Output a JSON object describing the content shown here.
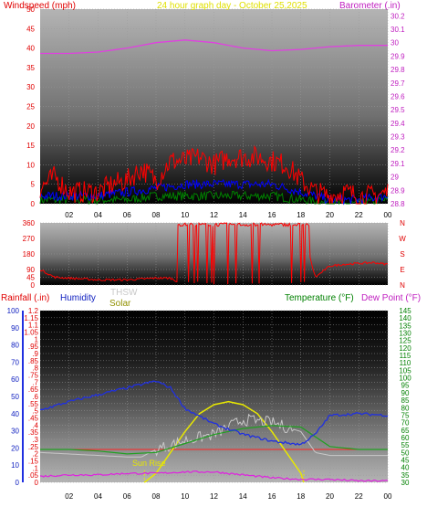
{
  "header": {
    "left_title": "Windspeed (mph)",
    "center_title": "24 hour graph day - October 25,2025",
    "right_title": "Barometer (.in)"
  },
  "bottom_header": {
    "rainfall": "Rainfall (.in)",
    "humidity": "Humidity",
    "thsw": "THSW",
    "solar": "Solar",
    "temperature": "Temperature (°F)",
    "dewpoint": "Dew Point (°F)"
  },
  "wind_dir_letters": [
    "N",
    "W",
    "S",
    "E",
    "N"
  ],
  "annotation": "Sun Rise",
  "x_ticks": [
    "02",
    "04",
    "06",
    "08",
    "10",
    "12",
    "14",
    "16",
    "18",
    "20",
    "22",
    "00"
  ],
  "colors": {
    "wind": "#ff0000",
    "wind_avg": "#0000ff",
    "wind_low": "#008000",
    "barometer": "#e040e0",
    "direction": "#ff0000",
    "humidity": "#2030e0",
    "temperature": "#20a020",
    "dewpoint": "#e020e0",
    "thsw": "#c8c8c8",
    "solar": "#e8e800",
    "rain": "#ff2020"
  },
  "chart_data": [
    {
      "type": "line",
      "name": "wind-barometer",
      "x_ticks": [
        "02",
        "04",
        "06",
        "08",
        "10",
        "12",
        "14",
        "16",
        "18",
        "20",
        "22",
        "00"
      ],
      "y_left": {
        "label": "Windspeed (mph)",
        "ticks": [
          0,
          5,
          10,
          15,
          20,
          25,
          30,
          35,
          40,
          45,
          50
        ],
        "ylim": [
          0,
          50
        ]
      },
      "y_right": {
        "label": "Barometer (.in)",
        "ticks": [
          28.8,
          28.9,
          29,
          29.1,
          29.2,
          29.3,
          29.4,
          29.5,
          29.6,
          29.7,
          29.8,
          29.9,
          30,
          30.1,
          30.2
        ],
        "ylim": [
          28.8,
          30.25
        ]
      },
      "series": [
        {
          "name": "Barometer (.in)",
          "axis": "right",
          "x": [
            0,
            2,
            4,
            6,
            8,
            10,
            12,
            14,
            16,
            18,
            20,
            22,
            24
          ],
          "y": [
            29.92,
            29.92,
            29.93,
            29.96,
            30.0,
            30.02,
            30.0,
            29.96,
            29.94,
            29.95,
            29.97,
            29.98,
            29.98
          ]
        },
        {
          "name": "Gust",
          "axis": "left",
          "x": [
            0,
            1,
            2,
            3,
            4,
            5,
            6,
            7,
            8,
            9,
            10,
            11,
            12,
            13,
            14,
            15,
            16,
            17,
            18,
            19,
            20,
            21,
            22,
            23,
            24
          ],
          "y": [
            4,
            7,
            3,
            3,
            3,
            5,
            6,
            9,
            6,
            11,
            11,
            12,
            10,
            12,
            12,
            12,
            11,
            10,
            6,
            3,
            2,
            3,
            2,
            2,
            3
          ]
        },
        {
          "name": "Average",
          "axis": "left",
          "x": [
            0,
            2,
            4,
            6,
            8,
            10,
            12,
            14,
            16,
            18,
            20,
            22,
            24
          ],
          "y": [
            2,
            2,
            2,
            3,
            4,
            5,
            5,
            5,
            5,
            3,
            1,
            1,
            2
          ]
        },
        {
          "name": "Low",
          "axis": "left",
          "x": [
            0,
            2,
            4,
            6,
            8,
            10,
            12,
            14,
            16,
            18,
            20,
            22,
            24
          ],
          "y": [
            1,
            1,
            1,
            1,
            2,
            2,
            2,
            2,
            2,
            1,
            0,
            0,
            1
          ]
        }
      ]
    },
    {
      "type": "line",
      "name": "wind-direction",
      "x_ticks": [
        "02",
        "04",
        "06",
        "08",
        "10",
        "12",
        "14",
        "16",
        "18",
        "20",
        "22",
        "00"
      ],
      "y_left": {
        "ticks": [
          0,
          45,
          90,
          180,
          270,
          360
        ],
        "ylim": [
          0,
          360
        ]
      },
      "y_right_labels": [
        "N",
        "W",
        "S",
        "E",
        "N"
      ],
      "series": [
        {
          "name": "Direction",
          "x": [
            0,
            1,
            2,
            3,
            4,
            5,
            6,
            7,
            8,
            9,
            9.5,
            10,
            11,
            12,
            13,
            14,
            15,
            16,
            17,
            18,
            19,
            20,
            21,
            22,
            23,
            24
          ],
          "y": [
            90,
            45,
            40,
            35,
            30,
            30,
            30,
            35,
            40,
            40,
            20,
            350,
            345,
            350,
            345,
            350,
            345,
            350,
            350,
            350,
            45,
            110,
            120,
            125,
            130,
            120
          ]
        }
      ]
    },
    {
      "type": "line",
      "name": "humidity-temperature",
      "x_ticks": [
        "02",
        "04",
        "06",
        "08",
        "10",
        "12",
        "14",
        "16",
        "18",
        "20",
        "22",
        "00"
      ],
      "y_left_rain": {
        "label": "Rainfall (.in)",
        "ticks": [
          0,
          0.05,
          0.1,
          0.15,
          0.2,
          0.25,
          0.3,
          0.35,
          0.4,
          0.45,
          0.5,
          0.55,
          0.6,
          0.65,
          0.7,
          0.75,
          0.8,
          0.85,
          0.9,
          0.95,
          1,
          1.05,
          1.1,
          1.15,
          1.2
        ],
        "ylim": [
          0,
          1.2
        ]
      },
      "y_left_humidity": {
        "label": "Humidity",
        "ticks": [
          0,
          10,
          20,
          30,
          40,
          50,
          60,
          70,
          80,
          90,
          100
        ],
        "ylim": [
          0,
          100
        ]
      },
      "y_right": {
        "label": "Temperature (°F)",
        "ticks": [
          30,
          35,
          40,
          45,
          50,
          55,
          60,
          65,
          70,
          75,
          80,
          85,
          90,
          95,
          100,
          105,
          110,
          115,
          120,
          125,
          130,
          135,
          140,
          145
        ],
        "ylim": [
          30,
          145
        ]
      },
      "series": [
        {
          "name": "Humidity",
          "axis": "humidity",
          "x": [
            0,
            2,
            4,
            6,
            8,
            9,
            10,
            12,
            14,
            16,
            18,
            19,
            20,
            22,
            24
          ],
          "y": [
            42,
            47,
            51,
            55,
            59,
            55,
            43,
            34,
            28,
            24,
            22,
            28,
            39,
            40,
            39
          ]
        },
        {
          "name": "Temperature (°F)",
          "axis": "right",
          "x": [
            0,
            2,
            4,
            6,
            8,
            10,
            12,
            14,
            16,
            18,
            20,
            22,
            24
          ],
          "y": [
            52,
            52,
            51,
            49,
            50,
            56,
            62,
            66,
            68,
            67,
            54,
            52,
            52
          ]
        },
        {
          "name": "Dew Point (°F)",
          "axis": "right",
          "x": [
            0,
            2,
            4,
            6,
            8,
            10,
            12,
            14,
            16,
            18,
            20,
            22,
            24
          ],
          "y": [
            34,
            35,
            35,
            36,
            36,
            37,
            37,
            35,
            33,
            32,
            32,
            31,
            31
          ]
        },
        {
          "name": "THSW",
          "axis": "right",
          "x": [
            0,
            2,
            4,
            6,
            7,
            8,
            10,
            12,
            14,
            16,
            18,
            19,
            20,
            22,
            24
          ],
          "y": [
            50,
            49,
            48,
            47,
            47,
            52,
            58,
            62,
            72,
            70,
            64,
            50,
            48,
            48,
            48
          ]
        },
        {
          "name": "Solar",
          "axis": "right",
          "x": [
            7.2,
            8,
            9,
            10,
            11,
            12,
            13,
            14,
            15,
            16,
            17,
            18,
            18.2
          ],
          "y": [
            30,
            36,
            50,
            64,
            76,
            82,
            84,
            82,
            76,
            64,
            50,
            36,
            30
          ]
        },
        {
          "name": "Rainfall (.in)",
          "axis": "rain",
          "x": [
            0,
            24
          ],
          "y": [
            0.23,
            0.23
          ]
        }
      ]
    }
  ]
}
